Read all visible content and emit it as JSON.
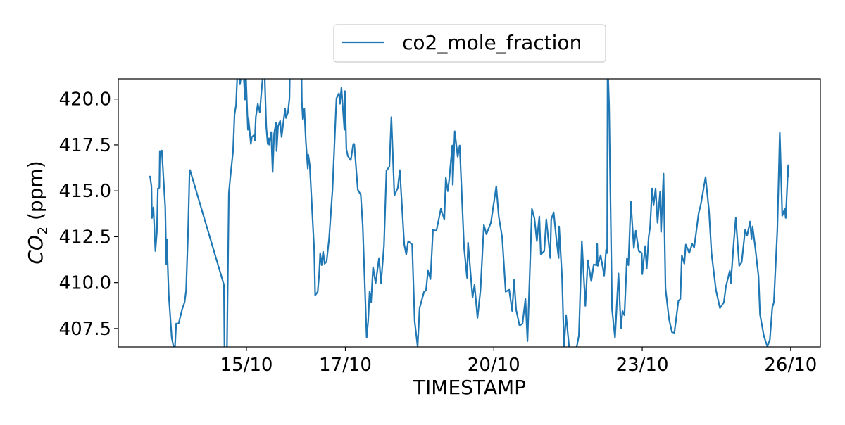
{
  "chart_data": {
    "type": "line",
    "title": "",
    "xlabel": "TIMESTAMP",
    "ylabel_main": "CO",
    "ylabel_sub": "2",
    "ylabel_unit": " (ppm)",
    "xlim": [
      12.41,
      26.6
    ],
    "ylim": [
      406.5,
      421.1
    ],
    "grid": false,
    "legend_placement": "top-center-outside",
    "x_ticks": [
      {
        "value": 15,
        "label": "15/10"
      },
      {
        "value": 17,
        "label": "17/10"
      },
      {
        "value": 20,
        "label": "20/10"
      },
      {
        "value": 23,
        "label": "23/10"
      },
      {
        "value": 26,
        "label": "26/10"
      }
    ],
    "y_ticks": [
      {
        "value": 407.5,
        "label": "407.5"
      },
      {
        "value": 410.0,
        "label": "410.0"
      },
      {
        "value": 412.5,
        "label": "412.5"
      },
      {
        "value": 415.0,
        "label": "415.0"
      },
      {
        "value": 417.5,
        "label": "417.5"
      },
      {
        "value": 420.0,
        "label": "420.0"
      }
    ],
    "series": [
      {
        "name": "co2_mole_fraction",
        "color": "#1f77b4",
        "x": [
          13.05,
          13.08,
          13.09,
          13.12,
          13.16,
          13.19,
          13.21,
          13.24,
          13.25,
          13.28,
          13.29,
          13.36,
          13.38,
          13.39,
          13.43,
          13.49,
          13.55,
          13.58,
          13.63,
          13.7,
          13.75,
          13.78,
          13.82,
          13.85,
          13.86,
          14.545,
          14.56,
          14.6,
          14.644,
          14.67,
          14.73,
          14.76,
          14.79,
          14.815,
          14.84,
          14.87,
          14.93,
          14.97,
          14.986,
          15.03,
          15.04,
          15.09,
          15.11,
          15.16,
          15.17,
          15.19,
          15.23,
          15.27,
          15.31,
          15.34,
          15.37,
          15.4,
          15.43,
          15.45,
          15.46,
          15.5,
          15.53,
          15.56,
          15.6,
          15.61,
          15.64,
          15.68,
          15.71,
          15.78,
          15.8,
          15.84,
          15.87,
          15.88,
          16.11,
          16.12,
          16.14,
          16.17,
          16.2,
          16.24,
          16.25,
          16.28,
          16.37,
          16.39,
          16.44,
          16.47,
          16.49,
          16.52,
          16.55,
          16.58,
          16.62,
          16.67,
          16.71,
          16.74,
          16.82,
          16.87,
          16.89,
          16.92,
          16.98,
          16.99,
          17.02,
          17.05,
          17.08,
          17.11,
          17.16,
          17.18,
          17.25,
          17.31,
          17.35,
          17.39,
          17.43,
          17.46,
          17.49,
          17.52,
          17.56,
          17.61,
          17.68,
          17.72,
          17.78,
          17.83,
          17.89,
          17.93,
          17.99,
          18.06,
          18.1,
          18.19,
          18.23,
          18.27,
          18.35,
          18.4,
          18.46,
          18.5,
          18.59,
          18.63,
          18.67,
          18.72,
          18.77,
          18.84,
          18.93,
          19.0,
          19.03,
          19.07,
          19.1,
          19.16,
          19.17,
          19.21,
          19.27,
          19.31,
          19.4,
          19.46,
          19.48,
          19.57,
          19.61,
          19.67,
          19.73,
          19.8,
          19.85,
          19.94,
          20.05,
          20.1,
          20.17,
          20.24,
          20.31,
          20.37,
          20.41,
          20.45,
          20.52,
          20.58,
          20.64,
          20.68,
          20.77,
          20.82,
          20.87,
          20.92,
          20.95,
          21.02,
          21.06,
          21.14,
          21.16,
          21.21,
          21.26,
          21.31,
          21.32,
          21.38,
          21.42,
          21.46,
          21.52,
          21.58,
          21.68,
          21.72,
          21.78,
          21.85,
          21.9,
          21.97,
          22.02,
          22.07,
          22.09,
          22.1,
          22.16,
          22.23,
          22.27,
          22.29,
          22.3,
          22.33,
          22.39,
          22.45,
          22.52,
          22.57,
          22.6,
          22.64,
          22.69,
          22.72,
          22.77,
          22.83,
          22.87,
          22.93,
          22.99,
          23.0,
          23.06,
          23.09,
          23.13,
          23.16,
          23.2,
          23.23,
          23.27,
          23.31,
          23.36,
          23.38,
          23.43,
          23.47,
          23.54,
          23.6,
          23.65,
          23.73,
          23.77,
          23.8,
          23.85,
          23.88,
          23.95,
          24.01,
          24.05,
          24.14,
          24.18,
          24.28,
          24.35,
          24.4,
          24.49,
          24.57,
          24.65,
          24.69,
          24.77,
          24.79,
          24.85,
          24.89,
          24.96,
          25.01,
          25.08,
          25.12,
          25.18,
          25.21,
          25.23,
          25.28,
          25.35,
          25.38,
          25.46,
          25.53,
          25.58,
          25.63,
          25.66,
          25.73,
          25.78,
          25.83,
          25.88,
          25.9,
          25.95,
          25.96
        ],
        "y": [
          415.82,
          415.25,
          413.52,
          414.1,
          411.72,
          412.76,
          415.13,
          415.17,
          417.17,
          416.97,
          417.2,
          414.1,
          410.99,
          412.37,
          409.31,
          407.0,
          406.2,
          407.77,
          407.77,
          408.54,
          408.92,
          409.57,
          412.76,
          416.02,
          416.13,
          409.88,
          405.0,
          405.0,
          414.87,
          415.63,
          417.17,
          419.16,
          419.66,
          421.3,
          422,
          420.8,
          422,
          419.97,
          421.5,
          418.32,
          418.97,
          417.55,
          417.93,
          418.05,
          417.74,
          419.01,
          419.74,
          419.28,
          420.62,
          421.5,
          421.12,
          418.51,
          417.55,
          417.86,
          417.51,
          418.2,
          416.02,
          418.12,
          418.7,
          417.17,
          418.51,
          418.81,
          417.93,
          419.47,
          418.97,
          419.28,
          420.04,
          422,
          422,
          419.85,
          418.89,
          419.47,
          417.74,
          416.21,
          416.97,
          416.4,
          411.8,
          409.31,
          409.5,
          410.46,
          411.61,
          410.95,
          411.68,
          411.03,
          411.15,
          412.37,
          413.91,
          415.06,
          420.04,
          420.31,
          419.74,
          420.62,
          418.32,
          420.43,
          417.28,
          416.9,
          416.78,
          416.67,
          417.55,
          417.55,
          415.06,
          414.79,
          413.14,
          410.07,
          407.0,
          407.89,
          409.5,
          408.92,
          410.84,
          409.96,
          411.34,
          409.96,
          411.99,
          416.09,
          416.32,
          419.01,
          414.75,
          415.17,
          416.13,
          412.07,
          411.53,
          412.26,
          412.07,
          407.89,
          406.51,
          408.61,
          409.5,
          409.57,
          410.65,
          410.19,
          412.87,
          412.83,
          414.02,
          413.45,
          415.71,
          414.98,
          415.63,
          417.47,
          415.33,
          418.24,
          416.86,
          417.47,
          411.88,
          410.26,
          412.18,
          409.19,
          409.88,
          408.08,
          409.57,
          413.14,
          412.64,
          413.26,
          415.25,
          413.6,
          412.45,
          409.5,
          409.61,
          408.46,
          410.15,
          408.54,
          407.66,
          407.77,
          409.11,
          406.81,
          414.02,
          413.52,
          412.26,
          413.6,
          411.53,
          411.72,
          413.45,
          411.34,
          413.45,
          413.83,
          412.49,
          411.34,
          413.06,
          410.26,
          406.51,
          408.23,
          406.55,
          406.0,
          406.55,
          407.12,
          412.26,
          408.73,
          411.22,
          410.07,
          410.99,
          410.95,
          412.11,
          410.92,
          411.49,
          410.38,
          411.8,
          411.61,
          422,
          419.66,
          408.54,
          407.0,
          410.5,
          407.5,
          408.46,
          408.23,
          411.34,
          410.95,
          414.41,
          411.88,
          412.83,
          411.72,
          411.61,
          410.46,
          411.99,
          410.76,
          412.49,
          413.06,
          415.13,
          414.21,
          415.13,
          413.26,
          414.94,
          412.76,
          415.94,
          409.69,
          408.04,
          407.31,
          407.27,
          409.0,
          409.11,
          411.49,
          411.03,
          412.07,
          411.61,
          412.11,
          411.91,
          413.79,
          414.21,
          415.75,
          413.91,
          411.61,
          409.61,
          408.61,
          408.92,
          409.77,
          410.65,
          409.96,
          412.18,
          413.52,
          410.92,
          411.11,
          412.87,
          412.56,
          413.33,
          412.37,
          413.06,
          411.99,
          410.34,
          408.27,
          407.08,
          406.51,
          406.89,
          408.65,
          408.92,
          412.87,
          418.16,
          413.64,
          414.02,
          413.52,
          416.4,
          415.75
        ]
      }
    ]
  }
}
